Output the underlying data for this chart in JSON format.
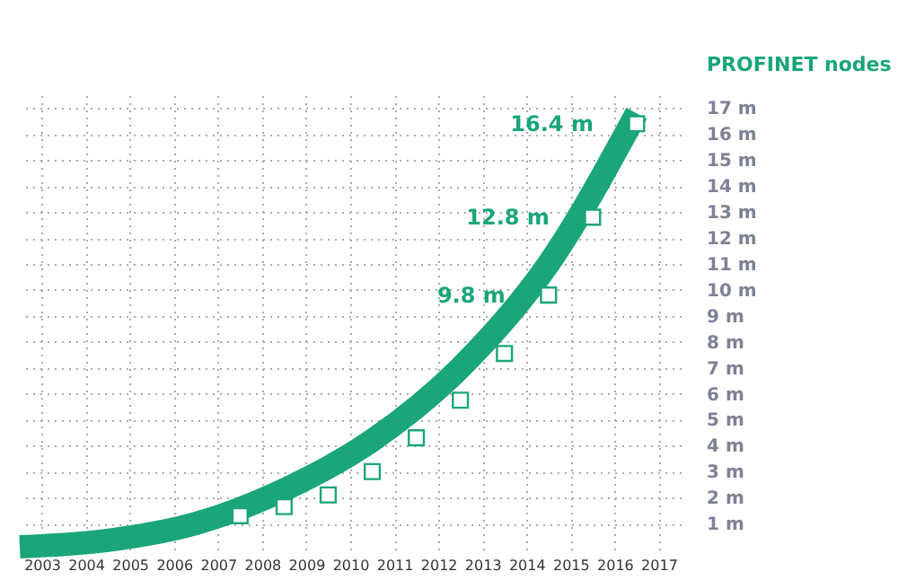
{
  "chart_data": {
    "type": "scatter",
    "ylabel": "PROFINET nodes",
    "xlim": [
      2002.5,
      2017.5
    ],
    "xticks": [
      2003,
      2004,
      2005,
      2006,
      2007,
      2008,
      2009,
      2010,
      2011,
      2012,
      2013,
      2014,
      2015,
      2016,
      2017
    ],
    "ylim": [
      0,
      17.5
    ],
    "yticks": [
      {
        "value": 1,
        "label": "1 m"
      },
      {
        "value": 2,
        "label": "2 m"
      },
      {
        "value": 3,
        "label": "3 m"
      },
      {
        "value": 4,
        "label": "4 m"
      },
      {
        "value": 5,
        "label": "5 m"
      },
      {
        "value": 6,
        "label": "6 m"
      },
      {
        "value": 7,
        "label": "7 m"
      },
      {
        "value": 8,
        "label": "8 m"
      },
      {
        "value": 9,
        "label": "9 m"
      },
      {
        "value": 10,
        "label": "10 m"
      },
      {
        "value": 11,
        "label": "11 m"
      },
      {
        "value": 12,
        "label": "12 m"
      },
      {
        "value": 13,
        "label": "13 m"
      },
      {
        "value": 14,
        "label": "14 m"
      },
      {
        "value": 15,
        "label": "15 m"
      },
      {
        "value": 16,
        "label": "16 m"
      },
      {
        "value": 17,
        "label": "17 m"
      }
    ],
    "grid": true,
    "series": [
      {
        "type": "line",
        "color": "#1aa57a",
        "marker": "none",
        "x": [
          2002.5,
          2004.5,
          2006.5,
          2008.5,
          2010.5,
          2012.5,
          2014.5,
          2016.5
        ],
        "values": [
          0.1,
          0.35,
          1.0,
          2.3,
          4.2,
          7.0,
          11.0,
          16.8
        ]
      },
      {
        "color": "#ffffff",
        "marker": "square",
        "x": [
          2007.5,
          2008.5,
          2009.5,
          2010.5,
          2011.5,
          2012.5,
          2013.5,
          2014.5,
          2015.5,
          2016.5
        ],
        "values": [
          1.3,
          1.65,
          2.1,
          3.0,
          4.3,
          5.75,
          7.55,
          9.8,
          12.8,
          16.4
        ],
        "value_labels": [
          null,
          null,
          null,
          null,
          null,
          null,
          null,
          "9.8 m",
          "12.8 m",
          "16.4 m"
        ]
      }
    ]
  }
}
